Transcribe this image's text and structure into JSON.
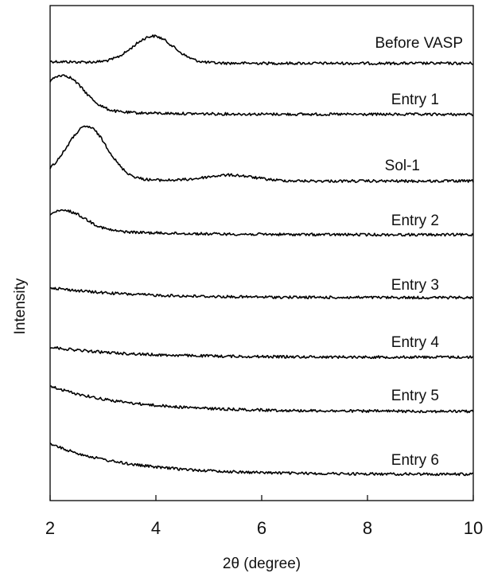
{
  "chart_data": {
    "type": "line",
    "xlabel": "2θ (degree)",
    "ylabel": "Intensity",
    "xlim": [
      2,
      10
    ],
    "xticks": [
      2,
      4,
      6,
      8,
      10
    ],
    "y_tick_labels": false,
    "grid": false,
    "legend": "none",
    "curve_color": "#000000",
    "series": [
      {
        "name": "Before VASP",
        "peaks": [
          {
            "x": 3.95,
            "height": 0.42
          }
        ],
        "baseline": 0.03,
        "slope": 0.03
      },
      {
        "name": "Entry 1",
        "peaks": [
          {
            "x": 2.25,
            "height": 0.55
          }
        ],
        "baseline": 0.04,
        "slope": 0.08
      },
      {
        "name": "Sol-1",
        "peaks": [
          {
            "x": 2.7,
            "height": 0.82
          },
          {
            "x": 5.4,
            "height": 0.09
          }
        ],
        "baseline": 0.03,
        "slope": 0.06
      },
      {
        "name": "Entry 2",
        "peaks": [
          {
            "x": 2.3,
            "height": 0.28
          }
        ],
        "baseline": 0.05,
        "slope": 0.12
      },
      {
        "name": "Entry 3",
        "peaks": [],
        "baseline": 0.05,
        "slope": 0.16
      },
      {
        "name": "Entry 4",
        "peaks": [],
        "baseline": 0.04,
        "slope": 0.16
      },
      {
        "name": "Entry 5",
        "peaks": [],
        "baseline": 0.05,
        "slope": 0.4
      },
      {
        "name": "Entry 6",
        "peaks": [],
        "baseline": 0.05,
        "slope": 0.48
      }
    ]
  }
}
